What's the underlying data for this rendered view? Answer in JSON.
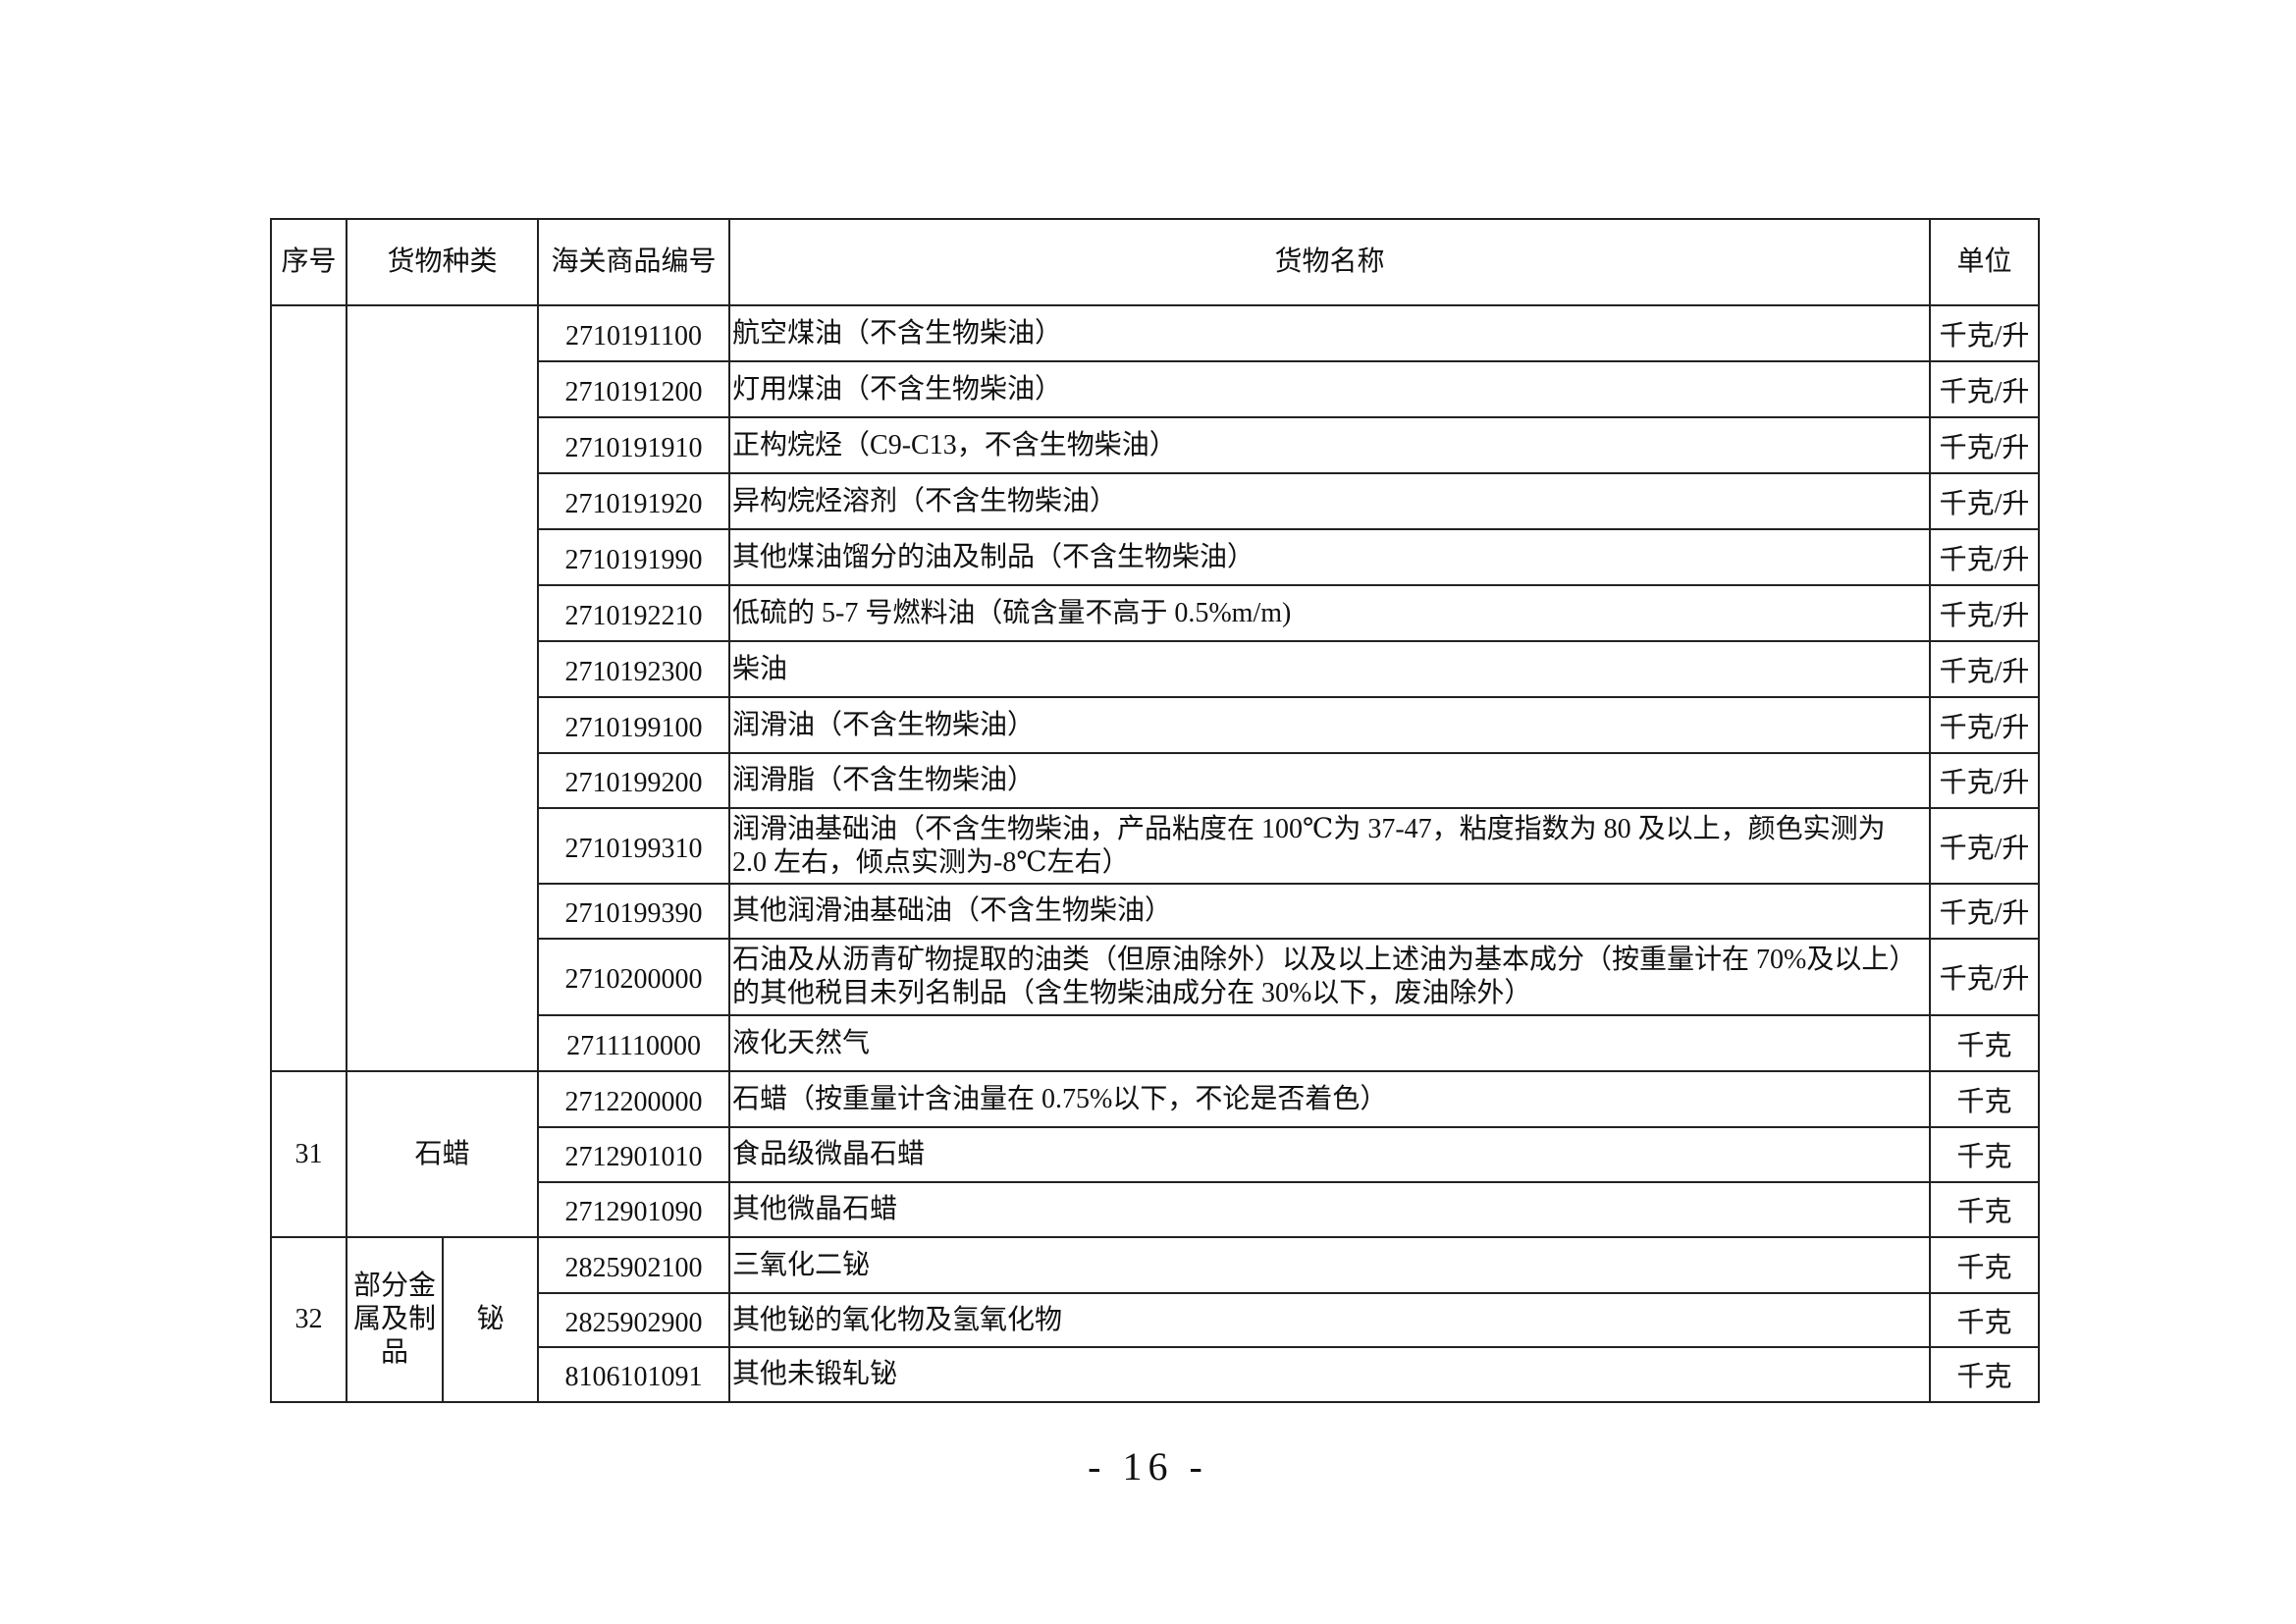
{
  "header": {
    "seq": "序号",
    "category": "货物种类",
    "code": "海关商品编号",
    "name": "货物名称",
    "unit": "单位"
  },
  "groups": [
    {
      "seq": "",
      "category": "",
      "subcategory": "",
      "rows": [
        {
          "code": "2710191100",
          "name": "航空煤油（不含生物柴油）",
          "unit": "千克/升"
        },
        {
          "code": "2710191200",
          "name": "灯用煤油（不含生物柴油）",
          "unit": "千克/升"
        },
        {
          "code": "2710191910",
          "name": "正构烷烃（C9-C13，不含生物柴油）",
          "unit": "千克/升"
        },
        {
          "code": "2710191920",
          "name": "异构烷烃溶剂（不含生物柴油）",
          "unit": "千克/升"
        },
        {
          "code": "2710191990",
          "name": "其他煤油馏分的油及制品（不含生物柴油）",
          "unit": "千克/升"
        },
        {
          "code": "2710192210",
          "name": "低硫的 5-7 号燃料油（硫含量不高于 0.5%m/m)",
          "unit": "千克/升"
        },
        {
          "code": "2710192300",
          "name": "柴油",
          "unit": "千克/升"
        },
        {
          "code": "2710199100",
          "name": "润滑油（不含生物柴油）",
          "unit": "千克/升"
        },
        {
          "code": "2710199200",
          "name": "润滑脂（不含生物柴油）",
          "unit": "千克/升"
        },
        {
          "code": "2710199310",
          "name": "润滑油基础油（不含生物柴油，产品粘度在 100℃为 37-47，粘度指数为 80 及以上，颜色实测为 2.0 左右，倾点实测为-8℃左右）",
          "unit": "千克/升"
        },
        {
          "code": "2710199390",
          "name": "其他润滑油基础油（不含生物柴油）",
          "unit": "千克/升"
        },
        {
          "code": "2710200000",
          "name": "石油及从沥青矿物提取的油类（但原油除外）以及以上述油为基本成分（按重量计在 70%及以上）的其他税目未列名制品（含生物柴油成分在 30%以下，废油除外）",
          "unit": "千克/升"
        },
        {
          "code": "2711110000",
          "name": "液化天然气",
          "unit": "千克"
        }
      ]
    },
    {
      "seq": "31",
      "category": "石蜡",
      "subcategory": "",
      "rows": [
        {
          "code": "2712200000",
          "name": "石蜡（按重量计含油量在 0.75%以下，不论是否着色）",
          "unit": "千克"
        },
        {
          "code": "2712901010",
          "name": "食品级微晶石蜡",
          "unit": "千克"
        },
        {
          "code": "2712901090",
          "name": "其他微晶石蜡",
          "unit": "千克"
        }
      ]
    },
    {
      "seq": "32",
      "category": "部分金属及制品",
      "subcategory": "铋",
      "rows": [
        {
          "code": "2825902100",
          "name": "三氧化二铋",
          "unit": "千克"
        },
        {
          "code": "2825902900",
          "name": "其他铋的氧化物及氢氧化物",
          "unit": "千克"
        },
        {
          "code": "8106101091",
          "name": "其他未锻轧铋",
          "unit": "千克"
        }
      ]
    }
  ],
  "page_number": "- 16 -"
}
